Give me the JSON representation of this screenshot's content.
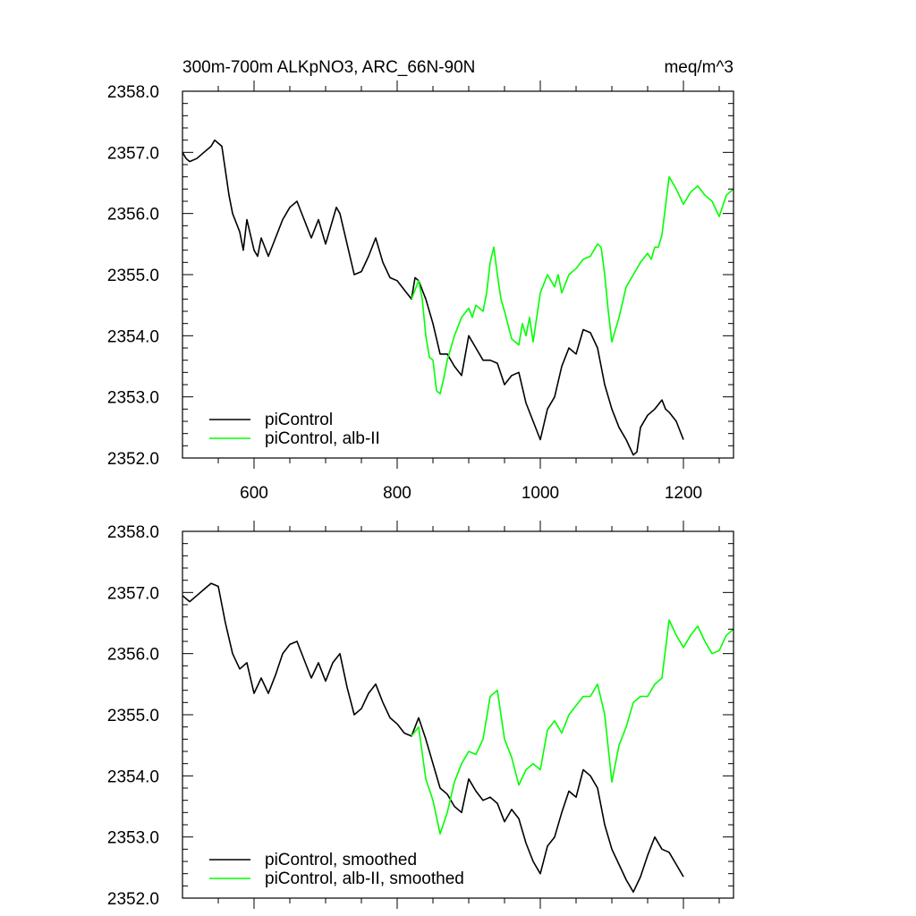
{
  "chart_data": [
    {
      "type": "line",
      "title": "300m-700m ALKpNO3, ARC_66N-90N",
      "units": "meq/m^3",
      "xlim": [
        500,
        1270
      ],
      "ylim": [
        2352.0,
        2358.0
      ],
      "xticks": [
        600,
        800,
        1000,
        1200
      ],
      "xticklabels": [
        "600",
        "800",
        "1000",
        "1200"
      ],
      "yticks": [
        2352.0,
        2353.0,
        2354.0,
        2355.0,
        2356.0,
        2357.0,
        2358.0
      ],
      "yticklabels": [
        "2352.0",
        "2353.0",
        "2354.0",
        "2355.0",
        "2356.0",
        "2357.0",
        "2358.0"
      ],
      "legend_position": "bottom-left",
      "series": [
        {
          "name": "piControl",
          "color": "#000000",
          "x": [
            500,
            505,
            510,
            520,
            530,
            540,
            545,
            550,
            555,
            560,
            565,
            570,
            580,
            585,
            590,
            600,
            605,
            610,
            620,
            630,
            640,
            650,
            660,
            670,
            680,
            690,
            700,
            710,
            715,
            720,
            730,
            740,
            750,
            760,
            770,
            780,
            790,
            800,
            810,
            820,
            825,
            830,
            840,
            850,
            860,
            870,
            880,
            890,
            900,
            910,
            920,
            930,
            940,
            950,
            960,
            970,
            980,
            990,
            1000,
            1010,
            1020,
            1030,
            1040,
            1050,
            1060,
            1070,
            1080,
            1090,
            1100,
            1110,
            1120,
            1130,
            1135,
            1140,
            1150,
            1160,
            1170,
            1175,
            1180,
            1190,
            1200
          ],
          "y": [
            2357.0,
            2356.9,
            2356.85,
            2356.9,
            2357.0,
            2357.1,
            2357.2,
            2357.15,
            2357.1,
            2356.7,
            2356.3,
            2356.0,
            2355.7,
            2355.4,
            2355.9,
            2355.4,
            2355.3,
            2355.6,
            2355.3,
            2355.6,
            2355.9,
            2356.1,
            2356.2,
            2355.9,
            2355.6,
            2355.9,
            2355.5,
            2355.9,
            2356.1,
            2356.0,
            2355.5,
            2355.0,
            2355.05,
            2355.3,
            2355.6,
            2355.2,
            2354.95,
            2354.9,
            2354.75,
            2354.6,
            2354.95,
            2354.9,
            2354.6,
            2354.2,
            2353.7,
            2353.7,
            2353.5,
            2353.35,
            2354.0,
            2353.8,
            2353.6,
            2353.6,
            2353.55,
            2353.2,
            2353.35,
            2353.4,
            2352.9,
            2352.6,
            2352.3,
            2352.8,
            2353.0,
            2353.5,
            2353.8,
            2353.7,
            2354.1,
            2354.05,
            2353.8,
            2353.2,
            2352.8,
            2352.5,
            2352.3,
            2352.05,
            2352.1,
            2352.5,
            2352.7,
            2352.8,
            2352.95,
            2352.8,
            2352.75,
            2352.6,
            2352.3
          ]
        },
        {
          "name": "piControl, alb-II",
          "color": "#00ff00",
          "x": [
            820,
            830,
            835,
            840,
            845,
            850,
            855,
            860,
            865,
            870,
            880,
            890,
            900,
            905,
            910,
            920,
            925,
            930,
            935,
            940,
            945,
            950,
            960,
            970,
            975,
            980,
            985,
            990,
            995,
            1000,
            1005,
            1010,
            1020,
            1025,
            1030,
            1040,
            1050,
            1060,
            1070,
            1080,
            1085,
            1090,
            1095,
            1100,
            1110,
            1120,
            1130,
            1140,
            1150,
            1155,
            1160,
            1165,
            1170,
            1180,
            1190,
            1200,
            1210,
            1220,
            1230,
            1240,
            1250,
            1260,
            1270
          ],
          "y": [
            2354.6,
            2354.9,
            2354.6,
            2354.0,
            2353.65,
            2353.6,
            2353.1,
            2353.05,
            2353.3,
            2353.6,
            2354.0,
            2354.3,
            2354.45,
            2354.3,
            2354.5,
            2354.4,
            2354.7,
            2355.2,
            2355.45,
            2355.0,
            2354.6,
            2354.4,
            2353.95,
            2353.85,
            2354.2,
            2354.0,
            2354.3,
            2353.9,
            2354.3,
            2354.7,
            2354.85,
            2355.0,
            2354.8,
            2355.0,
            2354.7,
            2355.0,
            2355.1,
            2355.25,
            2355.3,
            2355.5,
            2355.45,
            2355.0,
            2354.4,
            2353.9,
            2354.3,
            2354.8,
            2355.0,
            2355.2,
            2355.35,
            2355.25,
            2355.45,
            2355.45,
            2355.65,
            2356.6,
            2356.4,
            2356.15,
            2356.35,
            2356.45,
            2356.3,
            2356.2,
            2355.95,
            2356.3,
            2356.4
          ]
        }
      ]
    },
    {
      "type": "line",
      "title": "",
      "xlim": [
        500,
        1270
      ],
      "ylim": [
        2352.0,
        2358.0
      ],
      "xticks": [
        600,
        800,
        1000,
        1200
      ],
      "yticks": [
        2352.0,
        2353.0,
        2354.0,
        2355.0,
        2356.0,
        2357.0,
        2358.0
      ],
      "yticklabels": [
        "2352.0",
        "2353.0",
        "2354.0",
        "2355.0",
        "2356.0",
        "2357.0",
        "2358.0"
      ],
      "legend_position": "bottom-left",
      "series": [
        {
          "name": "piControl, smoothed",
          "color": "#000000",
          "x": [
            500,
            510,
            520,
            530,
            540,
            550,
            560,
            570,
            580,
            590,
            600,
            610,
            620,
            630,
            640,
            650,
            660,
            670,
            680,
            690,
            700,
            710,
            720,
            730,
            740,
            750,
            760,
            770,
            780,
            790,
            800,
            810,
            820,
            830,
            840,
            850,
            860,
            870,
            880,
            890,
            900,
            910,
            920,
            930,
            940,
            950,
            960,
            970,
            980,
            990,
            1000,
            1010,
            1020,
            1030,
            1040,
            1050,
            1060,
            1070,
            1080,
            1090,
            1100,
            1110,
            1120,
            1130,
            1140,
            1150,
            1160,
            1170,
            1180,
            1190,
            1200
          ],
          "y": [
            2356.95,
            2356.85,
            2356.95,
            2357.05,
            2357.15,
            2357.1,
            2356.5,
            2356.0,
            2355.75,
            2355.85,
            2355.35,
            2355.6,
            2355.35,
            2355.65,
            2356.0,
            2356.15,
            2356.2,
            2355.9,
            2355.6,
            2355.85,
            2355.55,
            2355.85,
            2356.0,
            2355.45,
            2355.0,
            2355.1,
            2355.35,
            2355.5,
            2355.2,
            2354.95,
            2354.85,
            2354.7,
            2354.65,
            2354.95,
            2354.6,
            2354.2,
            2353.8,
            2353.7,
            2353.5,
            2353.4,
            2353.95,
            2353.75,
            2353.6,
            2353.65,
            2353.55,
            2353.25,
            2353.45,
            2353.3,
            2352.9,
            2352.6,
            2352.4,
            2352.85,
            2353.0,
            2353.4,
            2353.75,
            2353.65,
            2354.1,
            2354.0,
            2353.8,
            2353.2,
            2352.8,
            2352.55,
            2352.3,
            2352.1,
            2352.35,
            2352.7,
            2353.0,
            2352.8,
            2352.75,
            2352.55,
            2352.35
          ]
        },
        {
          "name": "piControl, alb-II, smoothed",
          "color": "#00ff00",
          "x": [
            820,
            830,
            840,
            850,
            860,
            870,
            880,
            890,
            900,
            910,
            920,
            930,
            940,
            950,
            960,
            970,
            980,
            990,
            1000,
            1010,
            1020,
            1030,
            1040,
            1050,
            1060,
            1070,
            1080,
            1090,
            1100,
            1110,
            1120,
            1130,
            1140,
            1150,
            1160,
            1170,
            1180,
            1190,
            1200,
            1210,
            1220,
            1230,
            1240,
            1250,
            1260,
            1270
          ],
          "y": [
            2354.65,
            2354.8,
            2353.95,
            2353.6,
            2353.05,
            2353.4,
            2353.9,
            2354.2,
            2354.4,
            2354.35,
            2354.6,
            2355.3,
            2355.4,
            2354.6,
            2354.3,
            2353.85,
            2354.1,
            2354.2,
            2354.1,
            2354.75,
            2354.9,
            2354.7,
            2355.0,
            2355.15,
            2355.3,
            2355.3,
            2355.5,
            2355.0,
            2353.9,
            2354.5,
            2354.8,
            2355.2,
            2355.3,
            2355.3,
            2355.5,
            2355.6,
            2356.55,
            2356.3,
            2356.1,
            2356.3,
            2356.45,
            2356.2,
            2356.0,
            2356.05,
            2356.3,
            2356.4
          ]
        }
      ]
    }
  ]
}
